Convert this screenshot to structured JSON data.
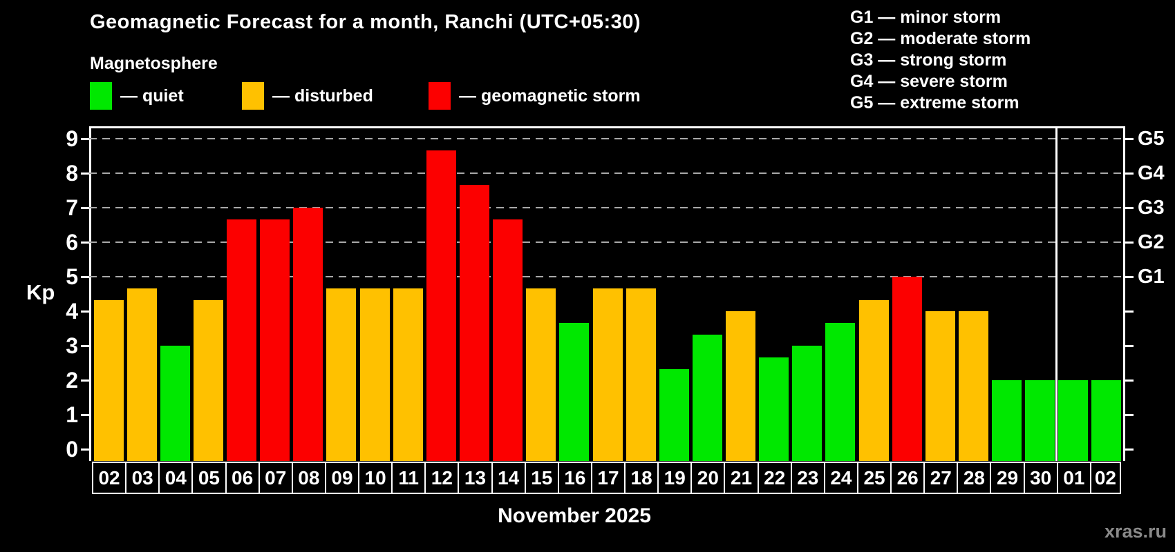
{
  "header": {
    "title": "Geomagnetic Forecast for a month, Ranchi (UTC+05:30)",
    "subtitle": "Magnetosphere"
  },
  "legend": {
    "items": [
      {
        "name": "quiet",
        "label": "— quiet",
        "color": "#00e800"
      },
      {
        "name": "disturbed",
        "label": "— disturbed",
        "color": "#ffc100"
      },
      {
        "name": "storm",
        "label": "— geomagnetic storm",
        "color": "#fc0000"
      }
    ]
  },
  "storm_scale_legend": {
    "lines": [
      "G1 — minor storm",
      "G2 — moderate storm",
      "G3 — strong storm",
      "G4 — severe storm",
      "G5 — extreme storm"
    ]
  },
  "chart_data": {
    "type": "bar",
    "title": "Geomagnetic Forecast for a month, Ranchi (UTC+05:30)",
    "subtitle": "Magnetosphere",
    "ylabel": "Kp",
    "xlabel": "November 2025",
    "ylim": [
      0,
      9.4
    ],
    "yticks": [
      0,
      1,
      2,
      3,
      4,
      5,
      6,
      7,
      8,
      9
    ],
    "gridlines_at": [
      5,
      6,
      7,
      8,
      9
    ],
    "grid_style": "horizontal dashed gray lines only at G-storm levels (Kp 5-9)",
    "right_axis": [
      {
        "label": "G1",
        "kp": 5
      },
      {
        "label": "G2",
        "kp": 6
      },
      {
        "label": "G3",
        "kp": 7
      },
      {
        "label": "G4",
        "kp": 8
      },
      {
        "label": "G5",
        "kp": 9
      }
    ],
    "categories": [
      "02",
      "03",
      "04",
      "05",
      "06",
      "07",
      "08",
      "09",
      "10",
      "11",
      "12",
      "13",
      "14",
      "15",
      "16",
      "17",
      "18",
      "19",
      "20",
      "21",
      "22",
      "23",
      "24",
      "25",
      "26",
      "27",
      "28",
      "29",
      "30",
      "01",
      "02"
    ],
    "values": [
      4.33,
      4.67,
      3.0,
      4.33,
      6.67,
      6.67,
      7.0,
      4.67,
      4.67,
      4.67,
      8.67,
      7.67,
      6.67,
      4.67,
      3.67,
      4.67,
      4.67,
      2.33,
      3.33,
      4.0,
      2.67,
      3.0,
      3.67,
      4.33,
      5.0,
      4.0,
      4.0,
      2.0,
      2.0,
      2.0,
      2.0
    ],
    "statuses": [
      "disturbed",
      "disturbed",
      "quiet",
      "disturbed",
      "storm",
      "storm",
      "storm",
      "disturbed",
      "disturbed",
      "disturbed",
      "storm",
      "storm",
      "storm",
      "disturbed",
      "quiet",
      "disturbed",
      "disturbed",
      "quiet",
      "quiet",
      "disturbed",
      "quiet",
      "quiet",
      "quiet",
      "disturbed",
      "storm",
      "disturbed",
      "disturbed",
      "quiet",
      "quiet",
      "quiet",
      "quiet"
    ],
    "colors": {
      "quiet": "#00e800",
      "disturbed": "#ffc100",
      "storm": "#fc0000"
    },
    "month_separator_after_category_index": 28,
    "legend_position": "top-left",
    "background": "#000000"
  },
  "footer": {
    "month_label": "November 2025",
    "watermark": "xras.ru"
  }
}
